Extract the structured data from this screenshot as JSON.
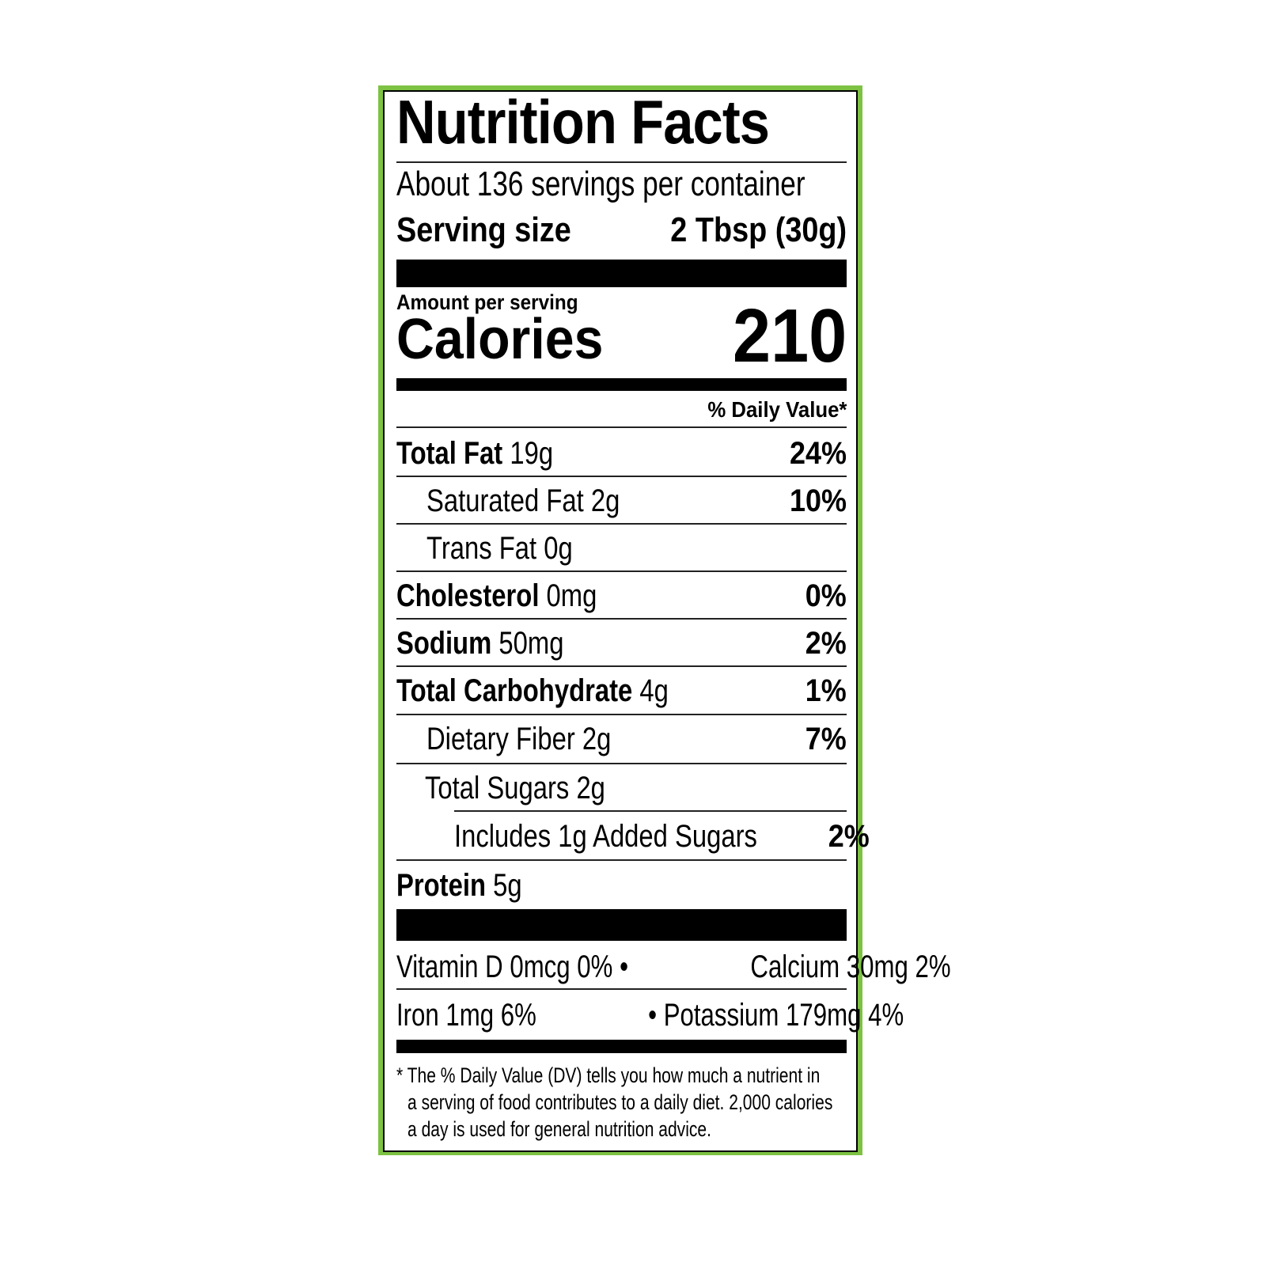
{
  "title": "Nutrition Facts",
  "servings_per_container": "About 136 servings per container",
  "serving_size_label": "Serving size",
  "serving_size_value": "2 Tbsp (30g)",
  "amount_per_serving": "Amount per serving",
  "calories_label": "Calories",
  "calories_value": "210",
  "daily_value_header": "% Daily Value*",
  "nutrients": [
    {
      "name": "Total Fat",
      "amount": "19g",
      "dv": "24%"
    },
    {
      "name": "Saturated Fat",
      "amount": "2g",
      "dv": "10%"
    },
    {
      "name": "Trans Fat",
      "amount": "0g",
      "dv": ""
    },
    {
      "name": "Cholesterol",
      "amount": "0mg",
      "dv": "0%"
    },
    {
      "name": "Sodium",
      "amount": "50mg",
      "dv": "2%"
    },
    {
      "name": "Total Carbohydrate",
      "amount": "4g",
      "dv": "1%"
    },
    {
      "name": "Dietary Fiber",
      "amount": "2g",
      "dv": "7%"
    },
    {
      "name": "Total Sugars",
      "amount": "2g",
      "dv": ""
    },
    {
      "name": "Includes 1g Added Sugars",
      "amount": "",
      "dv": "2%"
    },
    {
      "name": "Protein",
      "amount": "5g",
      "dv": ""
    }
  ],
  "vitamins": {
    "row1_left": "Vitamin D 0mcg 0% •",
    "row1_right": "Calcium 30mg 2%",
    "row2_left": "Iron 1mg 6%",
    "row2_right": "• Potassium 179mg 4%"
  },
  "footnote": [
    "* The % Daily Value (DV) tells you how much a nutrient in",
    "a serving of food contributes to a daily diet. 2,000 calories",
    "a day is used for general nutrition advice."
  ],
  "colors": {
    "border_accent": "#7dc242"
  }
}
